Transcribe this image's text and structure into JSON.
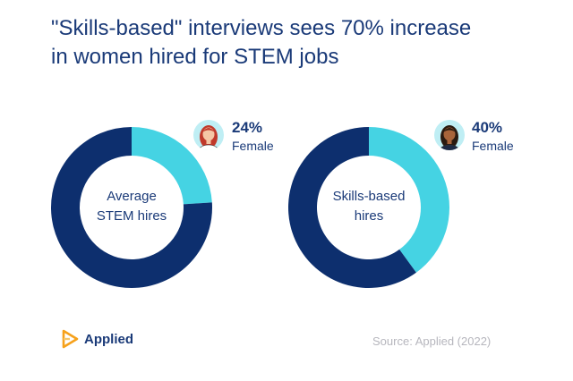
{
  "header": {
    "title_line1": "\"Skills-based\" interviews sees 70% increase",
    "title_line2": "in women hired for STEM jobs"
  },
  "colors": {
    "navy": "#0d2f6e",
    "cyan": "#45d3e3",
    "text": "#1a3a78",
    "source": "#b6b6bd",
    "logo_orange": "#f6a11a"
  },
  "chart_data": [
    {
      "type": "pie",
      "variant": "donut",
      "center_label_line1": "Average",
      "center_label_line2": "STEM hires",
      "slices": [
        {
          "label": "Female",
          "value": 24,
          "color": "#45d3e3"
        },
        {
          "label": "",
          "value": 76,
          "color": "#0d2f6e"
        }
      ],
      "callout_value": "24%",
      "callout_label": "Female",
      "avatar_icon": "woman-red-hair-avatar-icon"
    },
    {
      "type": "pie",
      "variant": "donut",
      "center_label_line1": "Skills-based",
      "center_label_line2": "hires",
      "slices": [
        {
          "label": "Female",
          "value": 40,
          "color": "#45d3e3"
        },
        {
          "label": "",
          "value": 60,
          "color": "#0d2f6e"
        }
      ],
      "callout_value": "40%",
      "callout_label": "Female",
      "avatar_icon": "woman-dark-hair-avatar-icon"
    }
  ],
  "footer": {
    "logo_text": "Applied",
    "logo_icon": "applied-play-logo-icon",
    "source": "Source: Applied (2022)"
  }
}
